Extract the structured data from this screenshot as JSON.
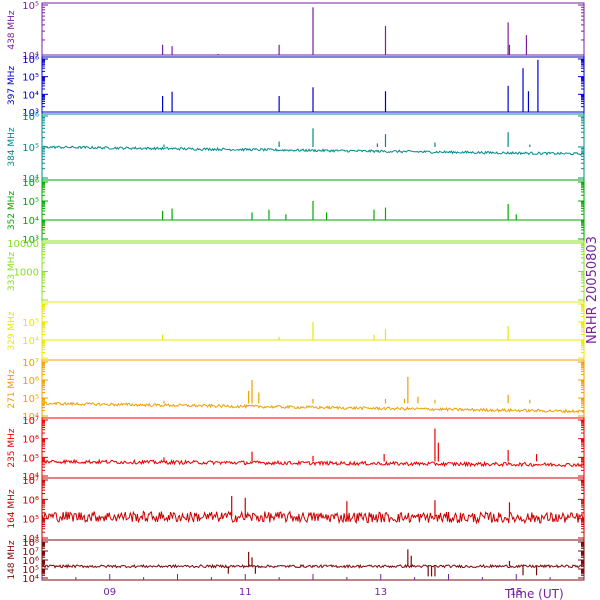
{
  "chart_data": {
    "type": "line",
    "title": "",
    "side_label": "NRHR 20050803",
    "time_axis": {
      "label": "Time (UT)",
      "range_hours": [
        8.0,
        16.0
      ],
      "ticks": [
        {
          "value": 9,
          "label": "09"
        },
        {
          "value": 11,
          "label": "11"
        },
        {
          "value": 13,
          "label": "13"
        },
        {
          "value": 15,
          "label": "15"
        }
      ]
    },
    "panels": [
      {
        "name": "438 MHz",
        "color": "#7a1fa2",
        "scale": "log",
        "ylim": [
          10000,
          100000
        ],
        "yticks": [
          {
            "value": 10000,
            "label": "10⁴"
          },
          {
            "value": 100000,
            "label": "10⁵"
          }
        ],
        "baseline": 10000,
        "noise": 0.0,
        "spikes": [
          [
            9.78,
            16000
          ],
          [
            9.92,
            15000
          ],
          [
            10.6,
            10500
          ],
          [
            11.5,
            16000
          ],
          [
            12.0,
            90000
          ],
          [
            13.07,
            38000
          ],
          [
            14.88,
            45000
          ],
          [
            14.9,
            16000
          ],
          [
            15.15,
            25000
          ]
        ]
      },
      {
        "name": "397 MHz",
        "color": "#0000cc",
        "scale": "log",
        "ylim": [
          1000,
          1000000
        ],
        "yticks": [
          {
            "value": 1000,
            "label": "10³"
          },
          {
            "value": 10000,
            "label": "10⁴"
          },
          {
            "value": 100000,
            "label": "10⁵"
          },
          {
            "value": 1000000,
            "label": "10⁶"
          }
        ],
        "baseline": 1000,
        "noise": 0.0,
        "spikes": [
          [
            9.78,
            8000
          ],
          [
            9.92,
            14000
          ],
          [
            11.5,
            8000
          ],
          [
            12.0,
            25000
          ],
          [
            13.07,
            15000
          ],
          [
            14.88,
            30000
          ],
          [
            15.1,
            300000
          ],
          [
            15.18,
            15000
          ],
          [
            15.32,
            900000
          ]
        ]
      },
      {
        "name": "384 MHz",
        "color": "#008b8b",
        "scale": "log",
        "ylim": [
          10000,
          1000000
        ],
        "yticks": [
          {
            "value": 10000,
            "label": "10⁴"
          },
          {
            "value": 100000,
            "label": "10⁵"
          },
          {
            "value": 1000000,
            "label": "10⁶"
          }
        ],
        "baseline": 100000,
        "baseline_end": 60000,
        "noise": 0.04,
        "spikes": [
          [
            9.8,
            120000
          ],
          [
            11.5,
            150000
          ],
          [
            12.0,
            400000
          ],
          [
            12.95,
            130000
          ],
          [
            13.07,
            260000
          ],
          [
            13.8,
            140000
          ],
          [
            14.88,
            300000
          ],
          [
            15.2,
            120000
          ]
        ]
      },
      {
        "name": "352 MHz",
        "color": "#00aa00",
        "scale": "log",
        "ylim": [
          1000,
          1000000
        ],
        "yticks": [
          {
            "value": 1000,
            "label": "10³"
          },
          {
            "value": 10000,
            "label": "10⁴"
          },
          {
            "value": 100000,
            "label": "10⁵"
          },
          {
            "value": 1000000,
            "label": "10⁶"
          }
        ],
        "baseline": 10000,
        "noise": 0.0,
        "spikes": [
          [
            9.78,
            30000
          ],
          [
            9.92,
            40000
          ],
          [
            11.1,
            25000
          ],
          [
            11.35,
            35000
          ],
          [
            11.6,
            20000
          ],
          [
            12.0,
            100000
          ],
          [
            12.2,
            25000
          ],
          [
            12.9,
            35000
          ],
          [
            13.07,
            45000
          ],
          [
            14.88,
            70000
          ],
          [
            15.0,
            20000
          ]
        ]
      },
      {
        "name": "333 MHz",
        "color": "#88e020",
        "scale": "log",
        "ylim": [
          100,
          10000
        ],
        "yticks": [
          {
            "value": 1000,
            "label": "1000"
          },
          {
            "value": 10000,
            "label": "10000"
          }
        ],
        "baseline": 10000,
        "noise": 0.0,
        "spikes": []
      },
      {
        "name": "329 MHz",
        "color": "#e8e800",
        "scale": "log",
        "ylim": [
          1000,
          1000000
        ],
        "yticks": [
          {
            "value": 10000,
            "label": "10⁴"
          },
          {
            "value": 100000,
            "label": "10⁵"
          }
        ],
        "baseline": 10000,
        "noise": 0.0,
        "spikes": [
          [
            9.78,
            20000
          ],
          [
            11.5,
            15000
          ],
          [
            12.0,
            100000
          ],
          [
            12.9,
            20000
          ],
          [
            13.07,
            40000
          ],
          [
            14.88,
            60000
          ]
        ]
      },
      {
        "name": "271 MHz",
        "color": "#f0a000",
        "scale": "log",
        "ylim": [
          10000,
          10000000
        ],
        "yticks": [
          {
            "value": 10000,
            "label": "10⁴"
          },
          {
            "value": 100000,
            "label": "10⁵"
          },
          {
            "value": 1000000,
            "label": "10⁶"
          },
          {
            "value": 10000000,
            "label": "10⁷"
          }
        ],
        "baseline": 50000,
        "baseline_end": 18000,
        "noise": 0.08,
        "spikes": [
          [
            9.8,
            70000
          ],
          [
            11.05,
            250000
          ],
          [
            11.1,
            1000000
          ],
          [
            11.2,
            200000
          ],
          [
            12.0,
            90000
          ],
          [
            13.07,
            90000
          ],
          [
            13.35,
            90000
          ],
          [
            13.4,
            1500000
          ],
          [
            13.55,
            120000
          ],
          [
            13.8,
            80000
          ],
          [
            14.88,
            150000
          ],
          [
            15.2,
            80000
          ]
        ]
      },
      {
        "name": "235 MHz",
        "color": "#ee0000",
        "scale": "log",
        "ylim": [
          10000,
          10000000
        ],
        "yticks": [
          {
            "value": 10000,
            "label": "10⁴"
          },
          {
            "value": 100000,
            "label": "10⁵"
          },
          {
            "value": 1000000,
            "label": "10⁶"
          },
          {
            "value": 10000000,
            "label": "10⁷"
          }
        ],
        "baseline": 60000,
        "baseline_end": 40000,
        "noise": 0.1,
        "spikes": [
          [
            9.8,
            100000
          ],
          [
            11.1,
            200000
          ],
          [
            12.0,
            120000
          ],
          [
            13.05,
            150000
          ],
          [
            13.8,
            3500000
          ],
          [
            13.85,
            600000
          ],
          [
            14.88,
            250000
          ],
          [
            15.3,
            150000
          ]
        ]
      },
      {
        "name": "164 MHz",
        "color": "#cc0000",
        "scale": "log",
        "ylim": [
          10000,
          10000000
        ],
        "yticks": [
          {
            "value": 10000,
            "label": "10⁴"
          },
          {
            "value": 100000,
            "label": "10⁵"
          },
          {
            "value": 1000000,
            "label": "10⁶"
          },
          {
            "value": 10000000,
            "label": "10⁷"
          }
        ],
        "baseline": 130000,
        "baseline_end": 110000,
        "noise": 0.28,
        "spikes": [
          [
            10.8,
            1500000
          ],
          [
            11.0,
            1200000
          ],
          [
            12.5,
            800000
          ],
          [
            13.8,
            900000
          ],
          [
            14.9,
            700000
          ]
        ]
      },
      {
        "name": "148 MHz",
        "color": "#7a0a0a",
        "scale": "log",
        "ylim": [
          10000,
          100000000
        ],
        "yticks": [
          {
            "value": 10000,
            "label": "10⁴"
          },
          {
            "value": 100000,
            "label": "10⁵"
          },
          {
            "value": 1000000,
            "label": "10⁶"
          },
          {
            "value": 10000000,
            "label": "10⁷"
          },
          {
            "value": 100000000,
            "label": "10⁸"
          }
        ],
        "baseline": 200000,
        "noise": 0.15,
        "spikes": [
          [
            11.05,
            8000000
          ],
          [
            11.1,
            2000000
          ],
          [
            13.4,
            15000000
          ],
          [
            13.45,
            3000000
          ],
          [
            14.9,
            800000
          ]
        ],
        "dips": [
          [
            10.75,
            30000
          ],
          [
            11.15,
            30000
          ],
          [
            13.7,
            15000
          ],
          [
            13.75,
            15000
          ],
          [
            13.8,
            15000
          ],
          [
            15.1,
            20000
          ],
          [
            15.3,
            20000
          ]
        ]
      }
    ]
  }
}
